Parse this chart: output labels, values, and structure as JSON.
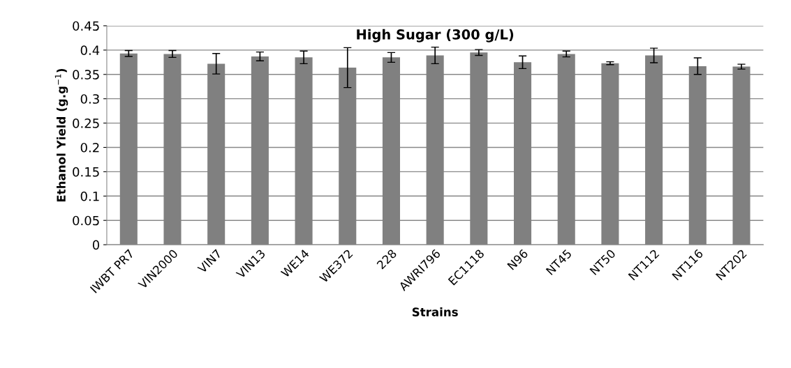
{
  "chart_data": {
    "type": "bar",
    "title": "High Sugar (300 g/L)",
    "xlabel": "Strains",
    "ylabel": "Ethanol Yield (g.g$^{−1}$)",
    "categories": [
      "IWBT PR7",
      "VIN2000",
      "VIN7",
      "VIN13",
      "WE14",
      "WE372",
      "228",
      "AWRI796",
      "EC1118",
      "N96",
      "NT45",
      "NT50",
      "NT112",
      "NT116",
      "NT202"
    ],
    "values": [
      0.393,
      0.392,
      0.372,
      0.387,
      0.385,
      0.364,
      0.385,
      0.389,
      0.395,
      0.375,
      0.392,
      0.373,
      0.389,
      0.367,
      0.366
    ],
    "errors": [
      0.006,
      0.007,
      0.021,
      0.009,
      0.013,
      0.041,
      0.01,
      0.017,
      0.006,
      0.013,
      0.006,
      0.003,
      0.015,
      0.017,
      0.005
    ],
    "color": "#808080",
    "ylim": [
      0,
      0.45
    ],
    "yticks": [
      0,
      0.05,
      0.1,
      0.15,
      0.2,
      0.25,
      0.3,
      0.35,
      0.4,
      0.45
    ],
    "grid": "y",
    "legend": false
  }
}
